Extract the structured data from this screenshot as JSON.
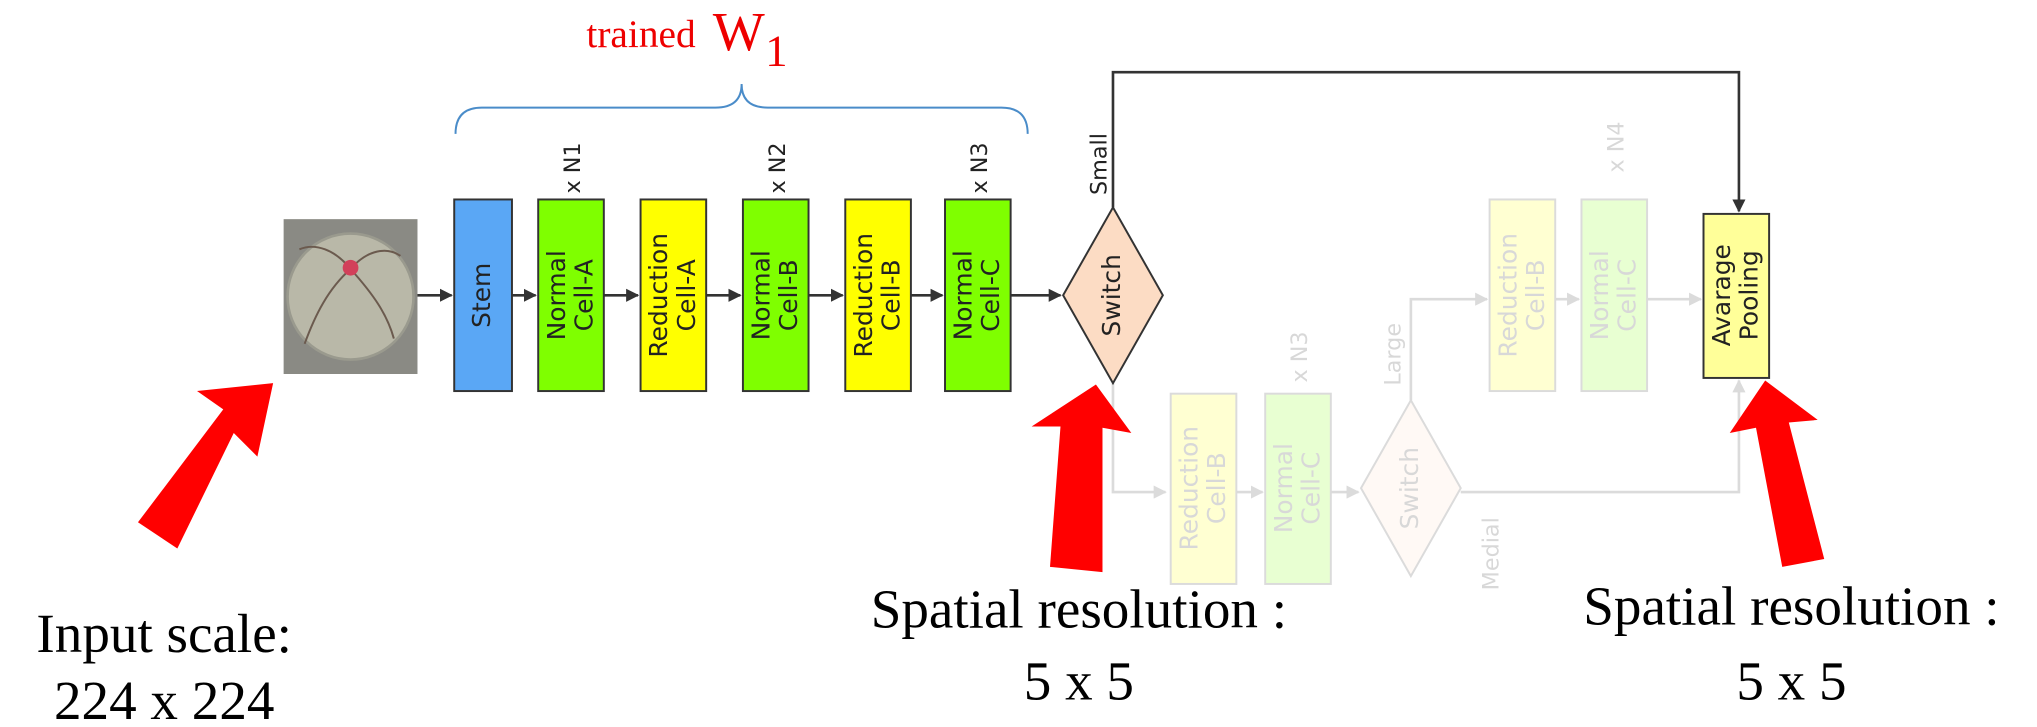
{
  "annotation": {
    "prefix": "trained",
    "symbol": "W",
    "subscript": "1"
  },
  "nodes": [
    {
      "lines": [
        "Stem"
      ]
    },
    {
      "lines": [
        "Normal",
        "Cell-A"
      ]
    },
    {
      "lines": [
        "Reduction",
        "Cell-A"
      ]
    },
    {
      "lines": [
        "Normal",
        "Cell-B"
      ]
    },
    {
      "lines": [
        "Reduction",
        "Cell-B"
      ]
    },
    {
      "lines": [
        "Normal",
        "Cell-C"
      ]
    },
    {
      "lines": [
        "Switch"
      ]
    },
    {
      "lines": [
        "Reduction",
        "Cell-B"
      ]
    },
    {
      "lines": [
        "Normal",
        "Cell-C"
      ]
    },
    {
      "lines": [
        "Switch"
      ]
    },
    {
      "lines": [
        "Reduction",
        "Cell-B"
      ]
    },
    {
      "lines": [
        "Normal",
        "Cell-C"
      ]
    },
    {
      "lines": [
        "Avarage",
        "Pooling"
      ]
    }
  ],
  "repeats": [
    "x N1",
    "x N2",
    "x N3",
    "x N3",
    "x N4"
  ],
  "branches": [
    "Small",
    "Large",
    "Medial"
  ],
  "captions": [
    {
      "lines": [
        "Input scale:",
        "224 x 224"
      ]
    },
    {
      "lines": [
        "Spatial resolution :",
        "5 x 5"
      ]
    },
    {
      "lines": [
        "Spatial resolution :",
        "5 x 5"
      ]
    }
  ]
}
